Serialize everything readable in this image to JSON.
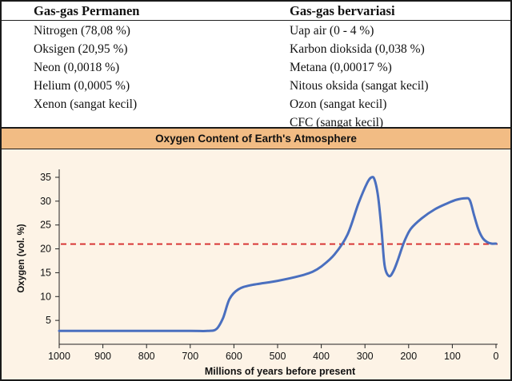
{
  "table": {
    "left_header": "Gas-gas Permanen",
    "right_header": "Gas-gas bervariasi",
    "left_items": [
      "Nitrogen (78,08 %)",
      "Oksigen (20,95 %)",
      "Neon (0,0018 %)",
      "Helium (0,0005 %)",
      "Xenon (sangat kecil)"
    ],
    "right_items": [
      "Uap air (0 - 4 %)",
      "Karbon dioksida (0,038 %)",
      "Metana (0,00017 %)",
      "Nitous oksida (sangat kecil)",
      "Ozon (sangat kecil)",
      "CFC (sangat kecil)"
    ]
  },
  "colors": {
    "line": "#4a6fbf",
    "reference": "#d62b2b",
    "title_bar": "#f2bc84",
    "background": "#fdf3e6"
  },
  "chart_data": {
    "type": "line",
    "title": "Oxygen Content of Earth's Atmosphere",
    "xlabel": "Millions of years before present",
    "ylabel": "Oxygen (vol. %)",
    "xlim": [
      1000,
      0
    ],
    "ylim": [
      0,
      36
    ],
    "x_ticks": [
      1000,
      900,
      800,
      700,
      600,
      500,
      400,
      300,
      200,
      100,
      0
    ],
    "y_ticks": [
      5,
      10,
      15,
      20,
      25,
      30,
      35
    ],
    "reference_line": {
      "y": 21,
      "style": "dashed"
    },
    "series": [
      {
        "name": "Oxygen",
        "x": [
          1000,
          900,
          800,
          700,
          660,
          640,
          625,
          610,
          590,
          560,
          500,
          450,
          420,
          400,
          370,
          340,
          315,
          295,
          285,
          278,
          270,
          262,
          255,
          245,
          235,
          225,
          210,
          195,
          170,
          140,
          110,
          90,
          70,
          60,
          50,
          40,
          30,
          20,
          10,
          0
        ],
        "y": [
          2.8,
          2.8,
          2.8,
          2.8,
          2.8,
          3.2,
          5.5,
          9.5,
          11.5,
          12.4,
          13.3,
          14.3,
          15.2,
          16.3,
          18.8,
          23.0,
          29.5,
          33.8,
          35.0,
          34.5,
          31.0,
          24.0,
          16.5,
          14.3,
          15.3,
          17.6,
          21.5,
          24.2,
          26.4,
          28.3,
          29.6,
          30.3,
          30.6,
          30.2,
          27.0,
          24.0,
          22.2,
          21.4,
          21.1,
          21.1
        ]
      }
    ]
  }
}
